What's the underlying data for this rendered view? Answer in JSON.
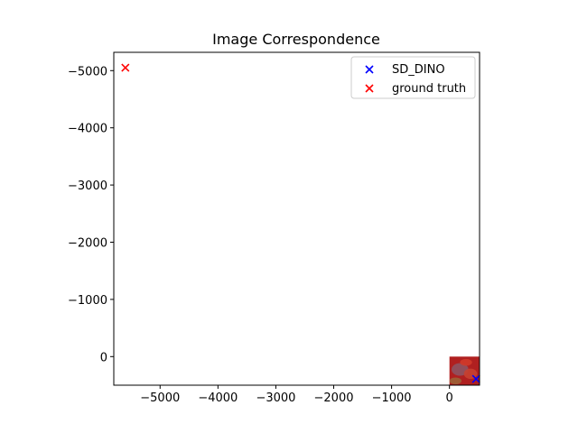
{
  "chart_data": {
    "type": "scatter",
    "title": "Image Correspondence",
    "xlabel": "",
    "ylabel": "",
    "xlim": [
      -5800,
      520
    ],
    "ylim": [
      500,
      -5320
    ],
    "y_inverted": true,
    "x_ticks": [
      -5000,
      -4000,
      -3000,
      -2000,
      -1000,
      0
    ],
    "x_tick_labels": [
      "−5000",
      "−4000",
      "−3000",
      "−2000",
      "−1000",
      "0"
    ],
    "y_ticks": [
      -5000,
      -4000,
      -3000,
      -2000,
      -1000,
      0
    ],
    "y_tick_labels": [
      "−5000",
      "−4000",
      "−3000",
      "−2000",
      "−1000",
      "0"
    ],
    "grid": false,
    "legend_position": "top-right",
    "series": [
      {
        "name": "SD_DINO",
        "color": "#0000ff",
        "marker": "x",
        "points": [
          [
            460,
            390
          ]
        ]
      },
      {
        "name": "ground truth",
        "color": "#ff0000",
        "marker": "x",
        "points": [
          [
            -5600,
            -5050
          ]
        ]
      }
    ],
    "background_image": {
      "extent_x": [
        0,
        520
      ],
      "extent_y": [
        500,
        0
      ],
      "dominant_color": "#b02020"
    }
  }
}
